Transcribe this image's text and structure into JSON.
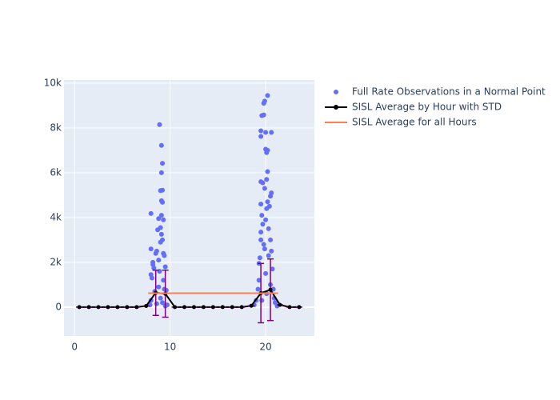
{
  "chart_data": {
    "type": "scatter",
    "xlim": [
      -1.1,
      25.1
    ],
    "ylim": [
      -1290,
      10140
    ],
    "xticks": [
      0,
      10,
      20
    ],
    "yticks": [
      0,
      {
        "value": 2000,
        "label": "2k"
      },
      {
        "value": 4000,
        "label": "4k"
      },
      {
        "value": 6000,
        "label": "6k"
      },
      {
        "value": 8000,
        "label": "8k"
      },
      {
        "value": 10000,
        "label": "10k"
      }
    ],
    "grid": true,
    "series": [
      {
        "name": "Full Rate Observations in a Normal Point",
        "color": "#636efa",
        "mode": "markers",
        "x": [
          7.9,
          8.0,
          8.1,
          8.0,
          8.2,
          8.3,
          8.4,
          8.5,
          8.6,
          8.7,
          8.8,
          8.9,
          9.0,
          9.0,
          9.1,
          9.2,
          9.3,
          9.3,
          9.4,
          9.5,
          9.6,
          9.4,
          8.8,
          9.0,
          9.2,
          8.6,
          9.7,
          9.5,
          8.9,
          9.1,
          9.2,
          9.1,
          9.0,
          9.2,
          9.1,
          9.2,
          8.0,
          8.8,
          9.3,
          9.1,
          8.0,
          8.2,
          18.8,
          19.0,
          19.2,
          19.3,
          19.3,
          19.4,
          19.5,
          19.5,
          19.6,
          19.7,
          19.8,
          19.9,
          20.0,
          20.0,
          20.1,
          20.2,
          20.3,
          20.3,
          20.4,
          20.5,
          20.5,
          20.6,
          20.7,
          20.8,
          20.9,
          21.0,
          21.2,
          20.1,
          19.6,
          20.2,
          19.9,
          19.8,
          19.6,
          19.8,
          19.5,
          20.0,
          20.6,
          19.5,
          20.0,
          20.1,
          20.2,
          20.2,
          20.1,
          19.5,
          19.7,
          20.6,
          20.5,
          19.9,
          19.5
        ],
        "y": [
          100,
          300,
          1300,
          1450,
          1900,
          1750,
          700,
          2400,
          2500,
          3450,
          2100,
          1600,
          3550,
          2900,
          3250,
          3000,
          2400,
          1200,
          800,
          1800,
          750,
          2300,
          900,
          400,
          200,
          150,
          100,
          50,
          8150,
          7220,
          6420,
          6000,
          5200,
          5220,
          4750,
          4680,
          4180,
          3950,
          3900,
          4100,
          2600,
          2000,
          100,
          300,
          800,
          1200,
          1950,
          2200,
          3000,
          3350,
          4100,
          3700,
          2800,
          2600,
          3900,
          1500,
          4400,
          4700,
          3500,
          2300,
          4500,
          3000,
          1000,
          2500,
          1700,
          800,
          400,
          200,
          50,
          600,
          300,
          9450,
          9200,
          9100,
          8550,
          8580,
          7870,
          7800,
          7800,
          7620,
          7050,
          6900,
          7000,
          6050,
          5700,
          5600,
          5550,
          5100,
          4950,
          5300,
          4600
        ]
      },
      {
        "name": "SISL Average by Hour with STD",
        "color": "#000000",
        "mode": "lines+markers",
        "error_color": "#800080",
        "x": [
          0.5,
          1.5,
          2.5,
          3.5,
          4.5,
          5.5,
          6.5,
          7.5,
          8.5,
          9.5,
          10.5,
          11.5,
          12.5,
          13.5,
          14.5,
          15.5,
          16.5,
          17.5,
          18.5,
          19.5,
          20.5,
          21.5,
          22.5,
          23.5
        ],
        "y": [
          0,
          0,
          0,
          0,
          0,
          0,
          0,
          50,
          640,
          600,
          0,
          0,
          0,
          0,
          0,
          0,
          0,
          0,
          60,
          625,
          775,
          100,
          0,
          0
        ],
        "error": [
          0,
          0,
          0,
          0,
          0,
          0,
          0,
          0,
          1010,
          1050,
          0,
          0,
          0,
          0,
          0,
          0,
          0,
          0,
          0,
          1325,
          1375,
          0,
          0,
          0
        ]
      },
      {
        "name": "SISL Average for all Hours",
        "color": "#ff7f50",
        "mode": "lines",
        "x": [
          7.7,
          21.3
        ],
        "y": [
          620,
          620
        ]
      }
    ]
  }
}
